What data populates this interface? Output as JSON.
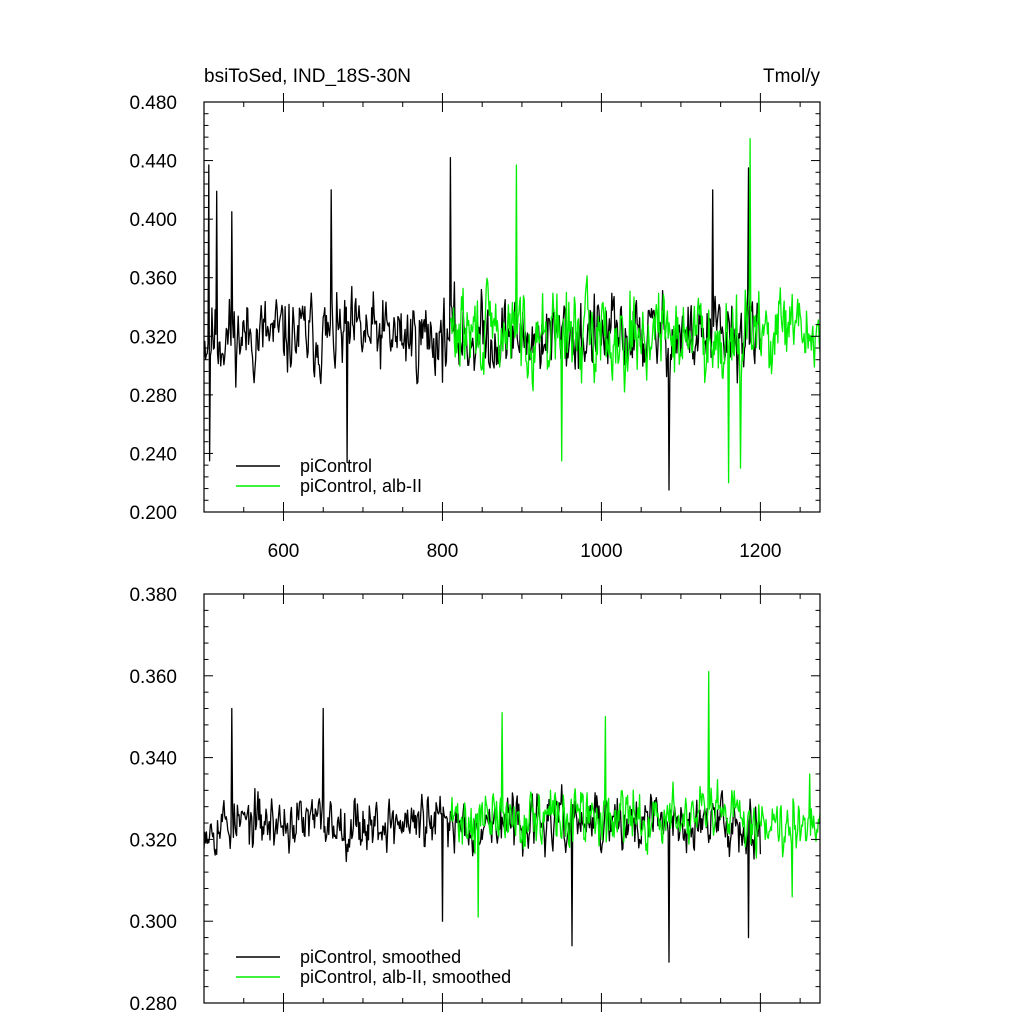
{
  "chart_data": [
    {
      "type": "line",
      "title": "bsiToSed, IND_18S-30N",
      "units": "Tmol/y",
      "xlim": [
        500,
        1275
      ],
      "ylim": [
        0.2,
        0.48
      ],
      "xticks": [
        600,
        800,
        1000,
        1200
      ],
      "xtick_labels": [
        "600",
        "800",
        "1000",
        "1200"
      ],
      "yticks": [
        0.2,
        0.24,
        0.28,
        0.32,
        0.36,
        0.4,
        0.44,
        0.48
      ],
      "ytick_labels": [
        "0.200",
        "0.240",
        "0.280",
        "0.320",
        "0.360",
        "0.400",
        "0.440",
        "0.480"
      ],
      "legend_position": "bottom-left",
      "grid": false,
      "series": [
        {
          "name": "piControl",
          "color": "#000000",
          "x_start": 500,
          "x_end": 1200,
          "mean": 0.32,
          "spread": 0.034,
          "seed": 11,
          "peaks": [
            [
              506,
              0.437
            ],
            [
              516,
              0.419
            ],
            [
              535,
              0.405
            ],
            [
              660,
              0.42
            ],
            [
              810,
              0.442
            ],
            [
              1185,
              0.435
            ],
            [
              1140,
              0.42
            ],
            [
              1085,
              0.215
            ],
            [
              680,
              0.234
            ],
            [
              507,
              0.235
            ]
          ]
        },
        {
          "name": "piControl, alb-II",
          "color": "#00ee00",
          "x_start": 810,
          "x_end": 1275,
          "mean": 0.322,
          "spread": 0.036,
          "seed": 29,
          "peaks": [
            [
              1187,
              0.455
            ],
            [
              893,
              0.437
            ],
            [
              1160,
              0.22
            ],
            [
              1175,
              0.23
            ],
            [
              950,
              0.235
            ]
          ]
        }
      ]
    },
    {
      "type": "line",
      "xlim": [
        500,
        1275
      ],
      "ylim": [
        0.28,
        0.38
      ],
      "xticks": [
        600,
        800,
        1000,
        1200
      ],
      "yticks": [
        0.28,
        0.3,
        0.32,
        0.34,
        0.36,
        0.38
      ],
      "ytick_labels": [
        "0.280",
        "0.300",
        "0.320",
        "0.340",
        "0.360",
        "0.380"
      ],
      "legend_position": "bottom-left",
      "grid": false,
      "series": [
        {
          "name": "piControl, smoothed",
          "color": "#000000",
          "x_start": 500,
          "x_end": 1200,
          "mean": 0.324,
          "spread": 0.0085,
          "seed": 53,
          "peaks": [
            [
              535,
              0.352
            ],
            [
              650,
              0.352
            ],
            [
              1085,
              0.29
            ],
            [
              963,
              0.294
            ],
            [
              1185,
              0.296
            ],
            [
              800,
              0.3
            ]
          ]
        },
        {
          "name": "piControl, alb-II, smoothed",
          "color": "#00ee00",
          "x_start": 810,
          "x_end": 1275,
          "mean": 0.325,
          "spread": 0.009,
          "seed": 71,
          "peaks": [
            [
              1135,
              0.361
            ],
            [
              875,
              0.351
            ],
            [
              1005,
              0.35
            ],
            [
              1262,
              0.336
            ],
            [
              845,
              0.301
            ],
            [
              1240,
              0.306
            ]
          ]
        }
      ]
    }
  ]
}
